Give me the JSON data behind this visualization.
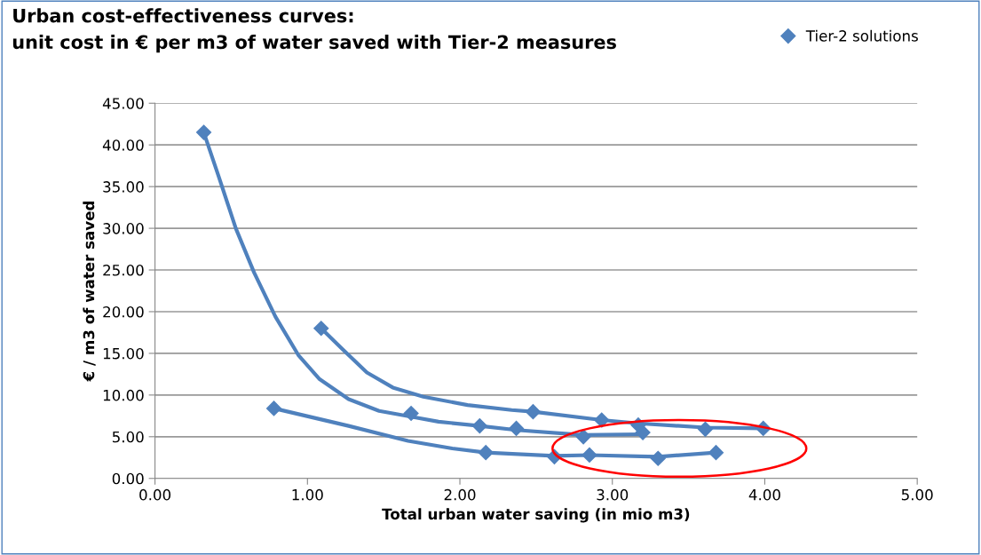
{
  "chart_data": {
    "type": "line",
    "title": "Urban cost-effectiveness curves:\nunit cost in € per m3 of water saved with Tier-2 measures",
    "xlabel": "Total urban water saving (in mio m3)",
    "ylabel": "€ / m3 of water saved",
    "series": [
      {
        "type": "scatter",
        "name": "Tier-2 solutions",
        "color": "#4f81bd",
        "marker": "diamond",
        "x": [
          0.32,
          1.68,
          2.13,
          2.37,
          2.81,
          3.2,
          1.09,
          2.48,
          2.93,
          3.17,
          3.61,
          3.99,
          0.78,
          2.17,
          2.62,
          2.85,
          3.3,
          3.68
        ],
        "values": [
          41.5,
          7.8,
          6.3,
          6.0,
          5.0,
          5.5,
          18.0,
          8.0,
          7.0,
          6.4,
          5.9,
          6.0,
          8.4,
          3.1,
          2.6,
          2.8,
          2.4,
          3.1
        ]
      },
      {
        "color": "#4f81bd",
        "marker": "none",
        "x": [
          0.32,
          0.42,
          0.53,
          0.65,
          0.79,
          0.94,
          1.08,
          1.27,
          1.47,
          1.68,
          1.86,
          2.13,
          2.37,
          2.81,
          3.2
        ],
        "values": [
          41.5,
          36.1,
          30.0,
          24.7,
          19.4,
          14.8,
          11.9,
          9.5,
          8.1,
          7.4,
          6.8,
          6.3,
          5.8,
          5.2,
          5.3
        ]
      },
      {
        "color": "#4f81bd",
        "marker": "none",
        "x": [
          1.09,
          1.23,
          1.39,
          1.56,
          1.76,
          2.05,
          2.34,
          2.48,
          2.93,
          3.17,
          3.61,
          3.99
        ],
        "values": [
          18.0,
          15.5,
          12.7,
          10.9,
          9.8,
          8.8,
          8.2,
          8.0,
          7.0,
          6.6,
          6.1,
          6.0
        ]
      },
      {
        "color": "#4f81bd",
        "marker": "none",
        "x": [
          0.78,
          1.27,
          1.66,
          1.95,
          2.17,
          2.62,
          2.85,
          3.3,
          3.68
        ],
        "values": [
          8.4,
          6.3,
          4.5,
          3.6,
          3.1,
          2.7,
          2.8,
          2.6,
          3.1
        ]
      }
    ],
    "xlim": [
      0,
      5
    ],
    "xticks": [
      {
        "value": 0,
        "label": "0.00"
      },
      {
        "value": 1,
        "label": "1.00"
      },
      {
        "value": 2,
        "label": "2.00"
      },
      {
        "value": 3,
        "label": "3.00"
      },
      {
        "value": 4,
        "label": "4.00"
      },
      {
        "value": 5,
        "label": "5.00"
      }
    ],
    "ylim": [
      0,
      45
    ],
    "yticks": [
      {
        "value": 0,
        "label": "0.00"
      },
      {
        "value": 5,
        "label": "5.00"
      },
      {
        "value": 10,
        "label": "10.00"
      },
      {
        "value": 15,
        "label": "15.00"
      },
      {
        "value": 20,
        "label": "20.00"
      },
      {
        "value": 25,
        "label": "25.00"
      },
      {
        "value": 30,
        "label": "30.00"
      },
      {
        "value": 35,
        "label": "35.00"
      },
      {
        "value": 40,
        "label": "40.00"
      },
      {
        "value": 45,
        "label": "45.00"
      }
    ],
    "grid": "y",
    "legend": "top right",
    "line_style": "solid"
  }
}
